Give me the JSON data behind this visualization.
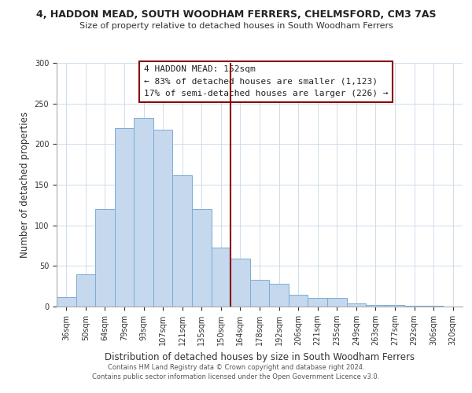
{
  "title1": "4, HADDON MEAD, SOUTH WOODHAM FERRERS, CHELMSFORD, CM3 7AS",
  "title2": "Size of property relative to detached houses in South Woodham Ferrers",
  "xlabel": "Distribution of detached houses by size in South Woodham Ferrers",
  "ylabel": "Number of detached properties",
  "bar_labels": [
    "36sqm",
    "50sqm",
    "64sqm",
    "79sqm",
    "93sqm",
    "107sqm",
    "121sqm",
    "135sqm",
    "150sqm",
    "164sqm",
    "178sqm",
    "192sqm",
    "206sqm",
    "221sqm",
    "235sqm",
    "249sqm",
    "263sqm",
    "277sqm",
    "292sqm",
    "306sqm",
    "320sqm"
  ],
  "bar_values": [
    12,
    40,
    120,
    220,
    232,
    218,
    162,
    120,
    73,
    59,
    33,
    28,
    15,
    11,
    11,
    4,
    2,
    2,
    1,
    1,
    0
  ],
  "bar_color": "#c5d8ed",
  "bar_edge_color": "#7aadd4",
  "vline_color": "#8b0000",
  "vline_x": 8.5,
  "annotation_title": "4 HADDON MEAD: 152sqm",
  "annotation_line1": "← 83% of detached houses are smaller (1,123)",
  "annotation_line2": "17% of semi-detached houses are larger (226) →",
  "ylim": [
    0,
    300
  ],
  "yticks": [
    0,
    50,
    100,
    150,
    200,
    250,
    300
  ],
  "footer1": "Contains HM Land Registry data © Crown copyright and database right 2024.",
  "footer2": "Contains public sector information licensed under the Open Government Licence v3.0."
}
